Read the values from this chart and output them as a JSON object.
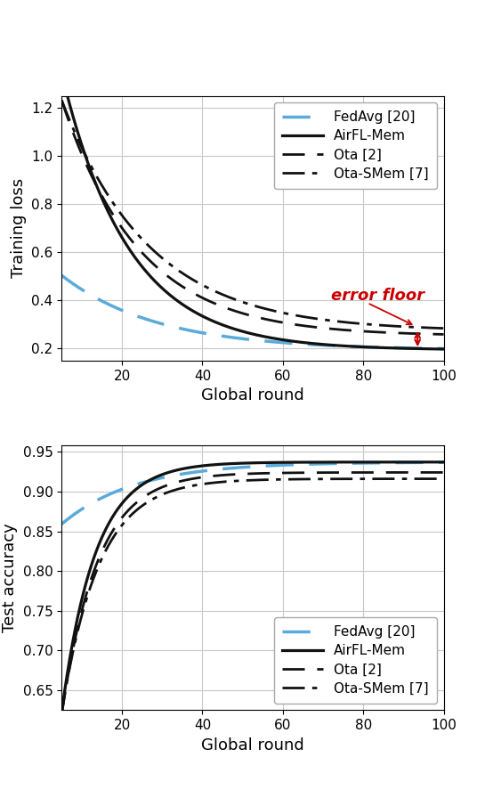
{
  "top": {
    "xlabel": "Global round",
    "ylabel": "Training loss",
    "xlim": [
      5,
      100
    ],
    "ylim": [
      0.15,
      1.25
    ],
    "yticks": [
      0.2,
      0.4,
      0.6,
      0.8,
      1.0,
      1.2
    ],
    "xticks": [
      20,
      40,
      60,
      80,
      100
    ],
    "fedavg_color": "#5aabdb",
    "black_color": "#111111",
    "annotation_text": "error floor",
    "annotation_color": "#cc0000"
  },
  "bottom": {
    "xlabel": "Global round",
    "ylabel": "Test accuracy",
    "xlim": [
      5,
      100
    ],
    "ylim": [
      0.625,
      0.958
    ],
    "yticks": [
      0.65,
      0.7,
      0.75,
      0.8,
      0.85,
      0.9,
      0.95
    ],
    "xticks": [
      20,
      40,
      60,
      80,
      100
    ],
    "fedavg_color": "#5aabdb",
    "black_color": "#111111"
  },
  "legend_labels": [
    "FedAvg [20]",
    "AirFL-Mem",
    "Ota [2]",
    "Ota-SMem [7]"
  ]
}
